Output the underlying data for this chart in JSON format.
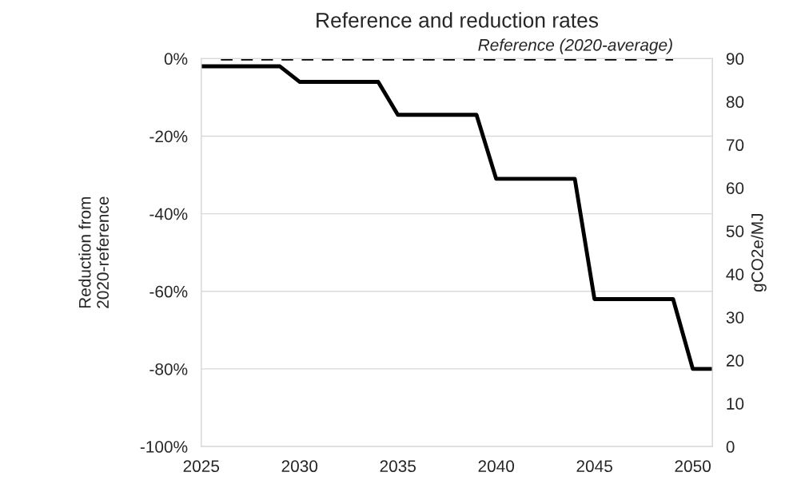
{
  "chart_data": {
    "type": "line",
    "title": "Reference and reduction rates",
    "ylabel": "Reduction from\n2020-reference",
    "y2label": "gCO2e/MJ",
    "series": [
      {
        "color": "#000000",
        "line_style": "solid",
        "x": [
          2025,
          2029,
          2030,
          2034,
          2035,
          2039,
          2040,
          2044,
          2045,
          2049,
          2050,
          2051
        ],
        "values": [
          -2,
          -2,
          -6,
          -6,
          -14.5,
          -14.5,
          -31,
          -31,
          -62,
          -62,
          -80,
          -80
        ]
      },
      {
        "color": "#000000",
        "line_style": "dashed",
        "x": [
          2026,
          2049
        ],
        "values": [
          0,
          0
        ]
      }
    ],
    "annotations": [
      {
        "text": "Reference (2020-average)",
        "x": 2049,
        "y": 0
      }
    ],
    "xlim": [
      2025,
      2051
    ],
    "xticks": [
      2025,
      2030,
      2035,
      2040,
      2045,
      2050
    ],
    "ylim": [
      -100,
      0
    ],
    "yticks": [
      {
        "value": -100,
        "label": "-100%"
      },
      {
        "value": -80,
        "label": "-80%"
      },
      {
        "value": -60,
        "label": "-60%"
      },
      {
        "value": -40,
        "label": "-40%"
      },
      {
        "value": -20,
        "label": "-20%"
      },
      {
        "value": 0,
        "label": "0%"
      }
    ],
    "y2lim": [
      0,
      90
    ],
    "y2ticks": [
      0,
      10,
      20,
      30,
      40,
      50,
      60,
      70,
      80,
      90
    ],
    "grid": "y",
    "legend": false
  }
}
